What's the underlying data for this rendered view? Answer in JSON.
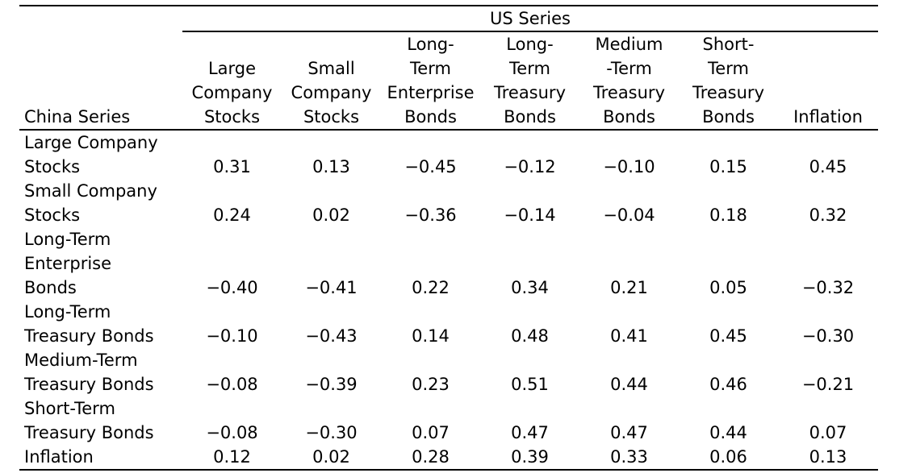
{
  "table": {
    "group_header": "US Series",
    "row_header": "China Series",
    "columns": [
      [
        "Large",
        "Company",
        "Stocks"
      ],
      [
        "Small",
        "Company",
        "Stocks"
      ],
      [
        "Long-",
        "Term",
        "Enterprise",
        "Bonds"
      ],
      [
        "Long-",
        "Term",
        "Treasury",
        "Bonds"
      ],
      [
        "Medium",
        "-Term",
        "Treasury",
        "Bonds"
      ],
      [
        "Short-",
        "Term",
        "Treasury",
        "Bonds"
      ],
      [
        "Inflation"
      ]
    ],
    "rows": [
      {
        "label": [
          "Large Company",
          "Stocks"
        ],
        "values": [
          "0.31",
          "0.13",
          "−0.45",
          "−0.12",
          "−0.10",
          "0.15",
          "0.45"
        ]
      },
      {
        "label": [
          "Small Company",
          "Stocks"
        ],
        "values": [
          "0.24",
          "0.02",
          "−0.36",
          "−0.14",
          "−0.04",
          "0.18",
          "0.32"
        ]
      },
      {
        "label": [
          "Long-Term",
          "Enterprise",
          "Bonds"
        ],
        "values": [
          "−0.40",
          "−0.41",
          "0.22",
          "0.34",
          "0.21",
          "0.05",
          "−0.32"
        ]
      },
      {
        "label": [
          "Long-Term",
          "Treasury Bonds"
        ],
        "values": [
          "−0.10",
          "−0.43",
          "0.14",
          "0.48",
          "0.41",
          "0.45",
          "−0.30"
        ]
      },
      {
        "label": [
          "Medium-Term",
          "Treasury Bonds"
        ],
        "values": [
          "−0.08",
          "−0.39",
          "0.23",
          "0.51",
          "0.44",
          "0.46",
          "−0.21"
        ]
      },
      {
        "label": [
          "Short-Term",
          "Treasury Bonds"
        ],
        "values": [
          "−0.08",
          "−0.30",
          "0.07",
          "0.47",
          "0.47",
          "0.44",
          "0.07"
        ]
      },
      {
        "label": [
          "Inflation"
        ],
        "values": [
          "0.12",
          "0.02",
          "0.28",
          "0.39",
          "0.33",
          "0.06",
          "0.13"
        ]
      }
    ]
  }
}
